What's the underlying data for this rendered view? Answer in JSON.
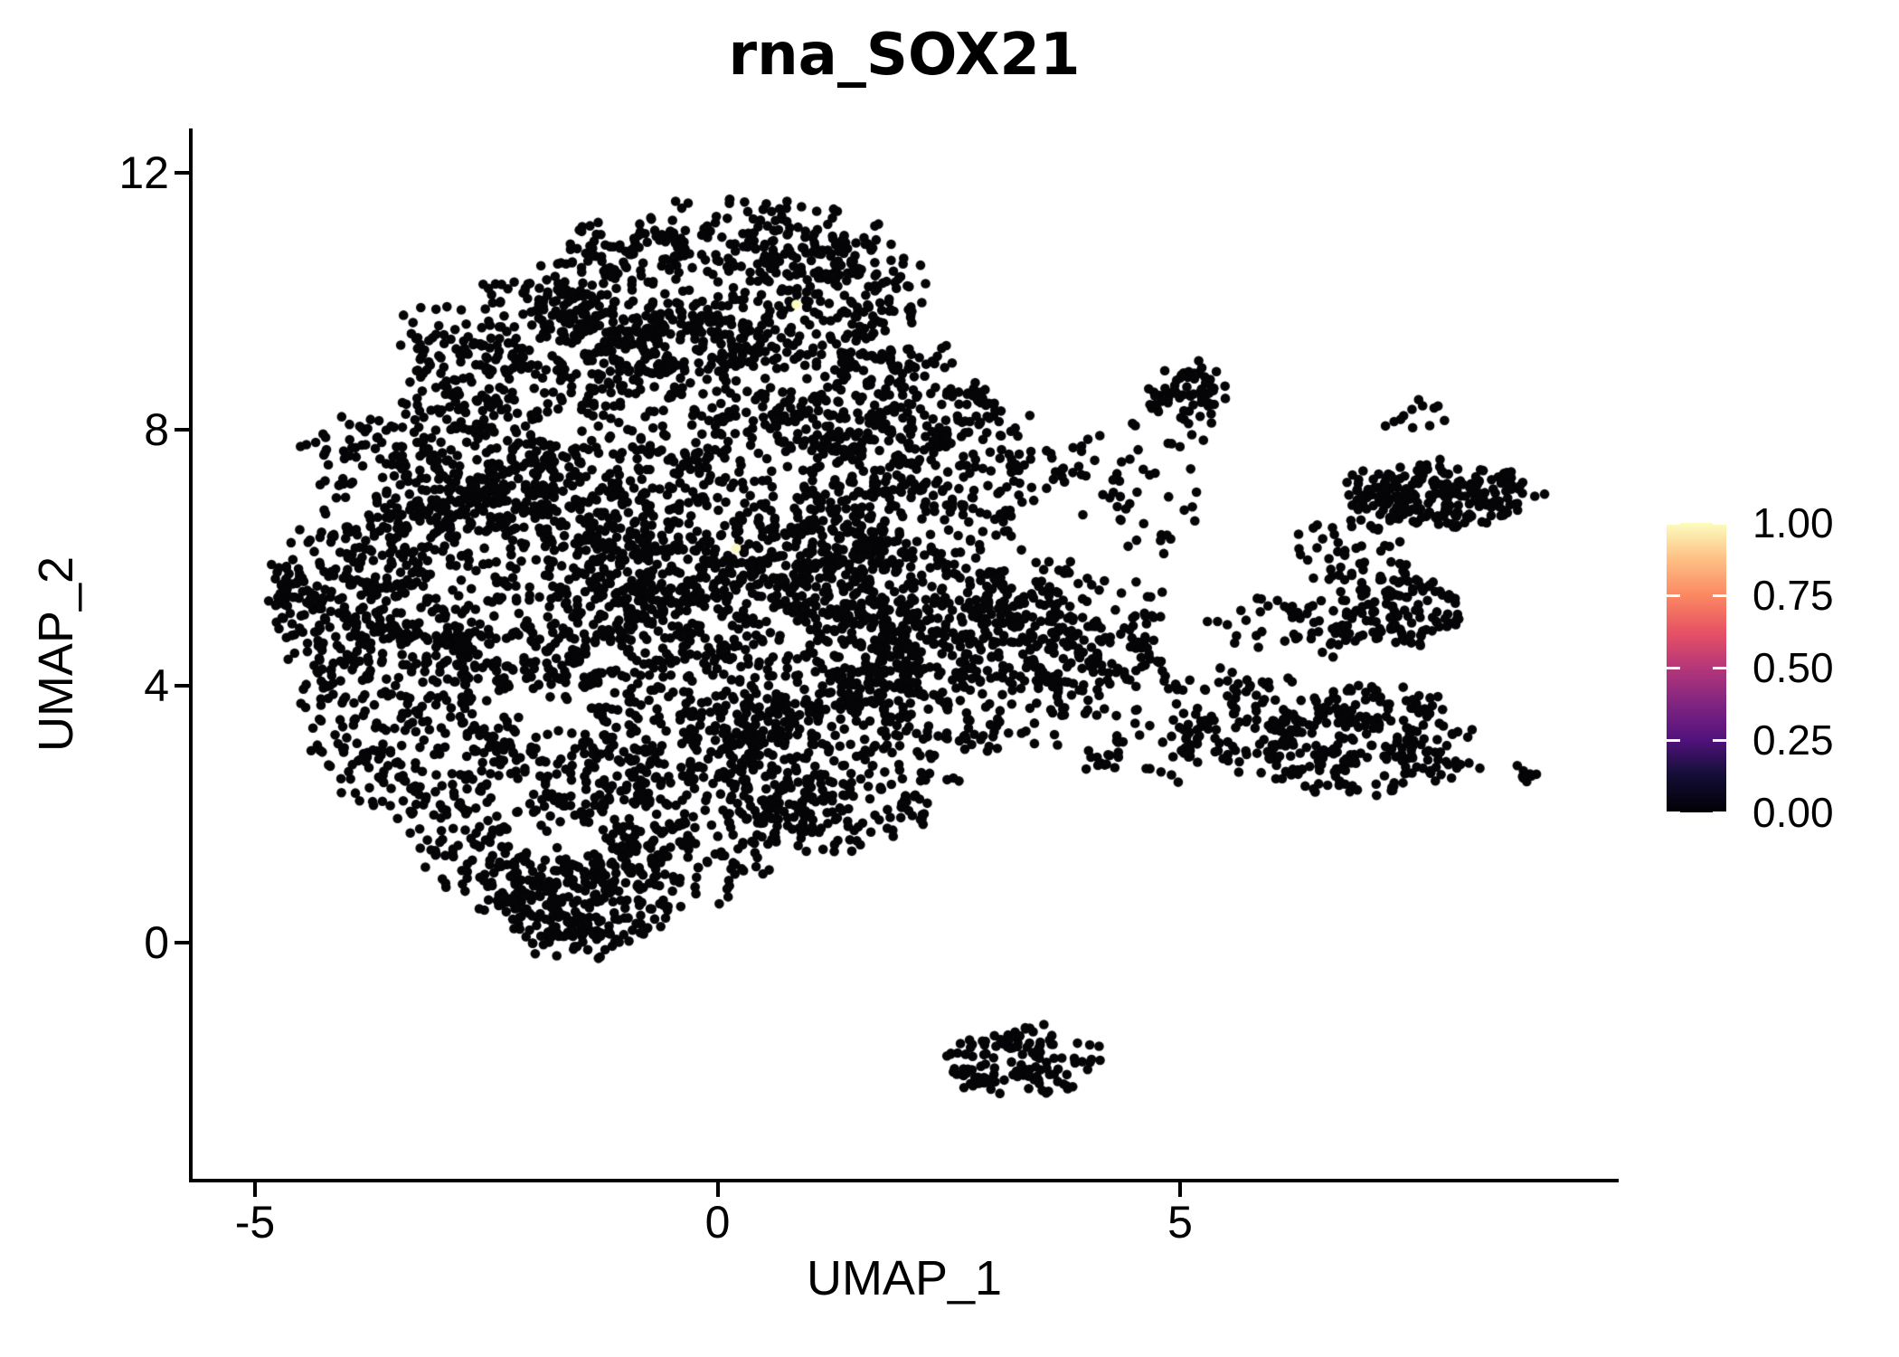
{
  "title": "rna_SOX21",
  "axes": {
    "x": {
      "label": "UMAP_1",
      "ticks": [
        {
          "value": -5,
          "label": "-5"
        },
        {
          "value": 0,
          "label": "0"
        },
        {
          "value": 5,
          "label": "5"
        }
      ]
    },
    "y": {
      "label": "UMAP_2",
      "ticks": [
        {
          "value": 0,
          "label": "0"
        },
        {
          "value": 4,
          "label": "4"
        },
        {
          "value": 8,
          "label": "8"
        },
        {
          "value": 12,
          "label": "12"
        }
      ]
    }
  },
  "legend": {
    "ticks": [
      {
        "value": 1.0,
        "label": "1.00"
      },
      {
        "value": 0.75,
        "label": "0.75"
      },
      {
        "value": 0.5,
        "label": "0.50"
      },
      {
        "value": 0.25,
        "label": "0.25"
      },
      {
        "value": 0.0,
        "label": "0.00"
      }
    ],
    "colormap_name": "magma",
    "colormap": [
      [
        0.0,
        "#000004"
      ],
      [
        0.13,
        "#140e36"
      ],
      [
        0.25,
        "#51127c"
      ],
      [
        0.38,
        "#822681"
      ],
      [
        0.5,
        "#b63679"
      ],
      [
        0.62,
        "#e65164"
      ],
      [
        0.75,
        "#fb8861"
      ],
      [
        0.88,
        "#fec287"
      ],
      [
        1.0,
        "#fcfdbf"
      ]
    ]
  },
  "chart_data": {
    "type": "scatter",
    "title": "rna_SOX21",
    "xlabel": "UMAP_1",
    "ylabel": "UMAP_2",
    "xlim": [
      -5.75,
      9.7
    ],
    "ylim": [
      -3.7,
      12.7
    ],
    "xticks": [
      -5,
      0,
      5
    ],
    "yticks": [
      0,
      4,
      8,
      12
    ],
    "grid": false,
    "legend_position": "right",
    "color_scale": {
      "name": "magma",
      "domain": [
        0,
        1
      ],
      "tick_labels": [
        "1.00",
        "0.75",
        "0.50",
        "0.25",
        "0.00"
      ]
    },
    "point_color": "#050508",
    "point_radius_px": 5.3,
    "n_points_approx": 7100,
    "clusters": [
      {
        "cx": 0.1,
        "cy": 10.2,
        "rx": 2.1,
        "ry": 1.35,
        "n": 680
      },
      {
        "cx": -1.9,
        "cy": 9.2,
        "rx": 1.5,
        "ry": 1.1,
        "n": 340
      },
      {
        "cx": -3.0,
        "cy": 7.4,
        "rx": 1.35,
        "ry": 1.2,
        "n": 340
      },
      {
        "cx": -4.0,
        "cy": 5.4,
        "rx": 0.85,
        "ry": 1.15,
        "n": 250
      },
      {
        "cx": -3.3,
        "cy": 3.5,
        "rx": 1.2,
        "ry": 1.5,
        "n": 320
      },
      {
        "cx": -1.9,
        "cy": 1.9,
        "rx": 1.4,
        "ry": 1.4,
        "n": 300
      },
      {
        "cx": -1.45,
        "cy": 0.55,
        "rx": 1.0,
        "ry": 0.75,
        "n": 220
      },
      {
        "cx": -0.2,
        "cy": 2.3,
        "rx": 1.3,
        "ry": 1.45,
        "n": 300
      },
      {
        "cx": 1.2,
        "cy": 2.7,
        "rx": 1.3,
        "ry": 1.2,
        "n": 300
      },
      {
        "cx": 0.0,
        "cy": 6.9,
        "rx": 2.0,
        "ry": 1.9,
        "n": 680
      },
      {
        "cx": 0.1,
        "cy": 4.7,
        "rx": 2.2,
        "ry": 1.6,
        "n": 620
      },
      {
        "cx": -2.1,
        "cy": 5.8,
        "rx": 1.5,
        "ry": 1.8,
        "n": 430
      },
      {
        "cx": 2.0,
        "cy": 5.6,
        "rx": 1.3,
        "ry": 1.8,
        "n": 430
      },
      {
        "cx": 2.9,
        "cy": 4.3,
        "rx": 1.3,
        "ry": 1.3,
        "n": 280
      },
      {
        "cx": 3.9,
        "cy": 4.9,
        "rx": 1.0,
        "ry": 1.1,
        "n": 150
      },
      {
        "cx": 1.9,
        "cy": 8.4,
        "rx": 1.1,
        "ry": 1.0,
        "n": 220
      },
      {
        "cx": 2.9,
        "cy": 7.5,
        "rx": 0.9,
        "ry": 0.8,
        "n": 95
      },
      {
        "cx": 4.1,
        "cy": 7.2,
        "rx": 0.5,
        "ry": 0.8,
        "n": 25
      },
      {
        "cx": 5.05,
        "cy": 8.55,
        "rx": 0.42,
        "ry": 0.4,
        "n": 70
      },
      {
        "cx": 4.75,
        "cy": 7.2,
        "rx": 0.55,
        "ry": 1.3,
        "n": 30
      },
      {
        "cx": 7.8,
        "cy": 6.95,
        "rx": 1.05,
        "ry": 0.48,
        "n": 240
      },
      {
        "cx": 6.85,
        "cy": 6.1,
        "rx": 0.65,
        "ry": 0.55,
        "n": 45
      },
      {
        "cx": 7.5,
        "cy": 8.2,
        "rx": 0.5,
        "ry": 0.3,
        "n": 12
      },
      {
        "cx": 7.35,
        "cy": 5.2,
        "rx": 0.7,
        "ry": 0.55,
        "n": 120
      },
      {
        "cx": 6.2,
        "cy": 4.9,
        "rx": 0.8,
        "ry": 0.5,
        "n": 50
      },
      {
        "cx": 7.0,
        "cy": 3.1,
        "rx": 1.1,
        "ry": 0.85,
        "n": 230
      },
      {
        "cx": 5.6,
        "cy": 3.4,
        "rx": 0.9,
        "ry": 0.9,
        "n": 110
      },
      {
        "cx": 4.6,
        "cy": 3.4,
        "rx": 0.7,
        "ry": 1.0,
        "n": 60
      },
      {
        "cx": 8.2,
        "cy": 2.7,
        "rx": 0.55,
        "ry": 0.12,
        "n": 10
      },
      {
        "cx": 8.65,
        "cy": 2.6,
        "rx": 0.18,
        "ry": 0.12,
        "n": 8
      },
      {
        "cx": 3.35,
        "cy": -1.85,
        "rx": 0.85,
        "ry": 0.55,
        "n": 125
      },
      {
        "cx": 2.7,
        "cy": -1.7,
        "rx": 0.35,
        "ry": 0.15,
        "n": 8
      }
    ],
    "highlight_points": [
      {
        "x": 0.85,
        "y": 9.95,
        "value": 1.0,
        "color": "#fcfdbf"
      },
      {
        "x": 0.2,
        "y": 6.15,
        "value": 0.95,
        "color": "#fcf6c0"
      }
    ]
  }
}
